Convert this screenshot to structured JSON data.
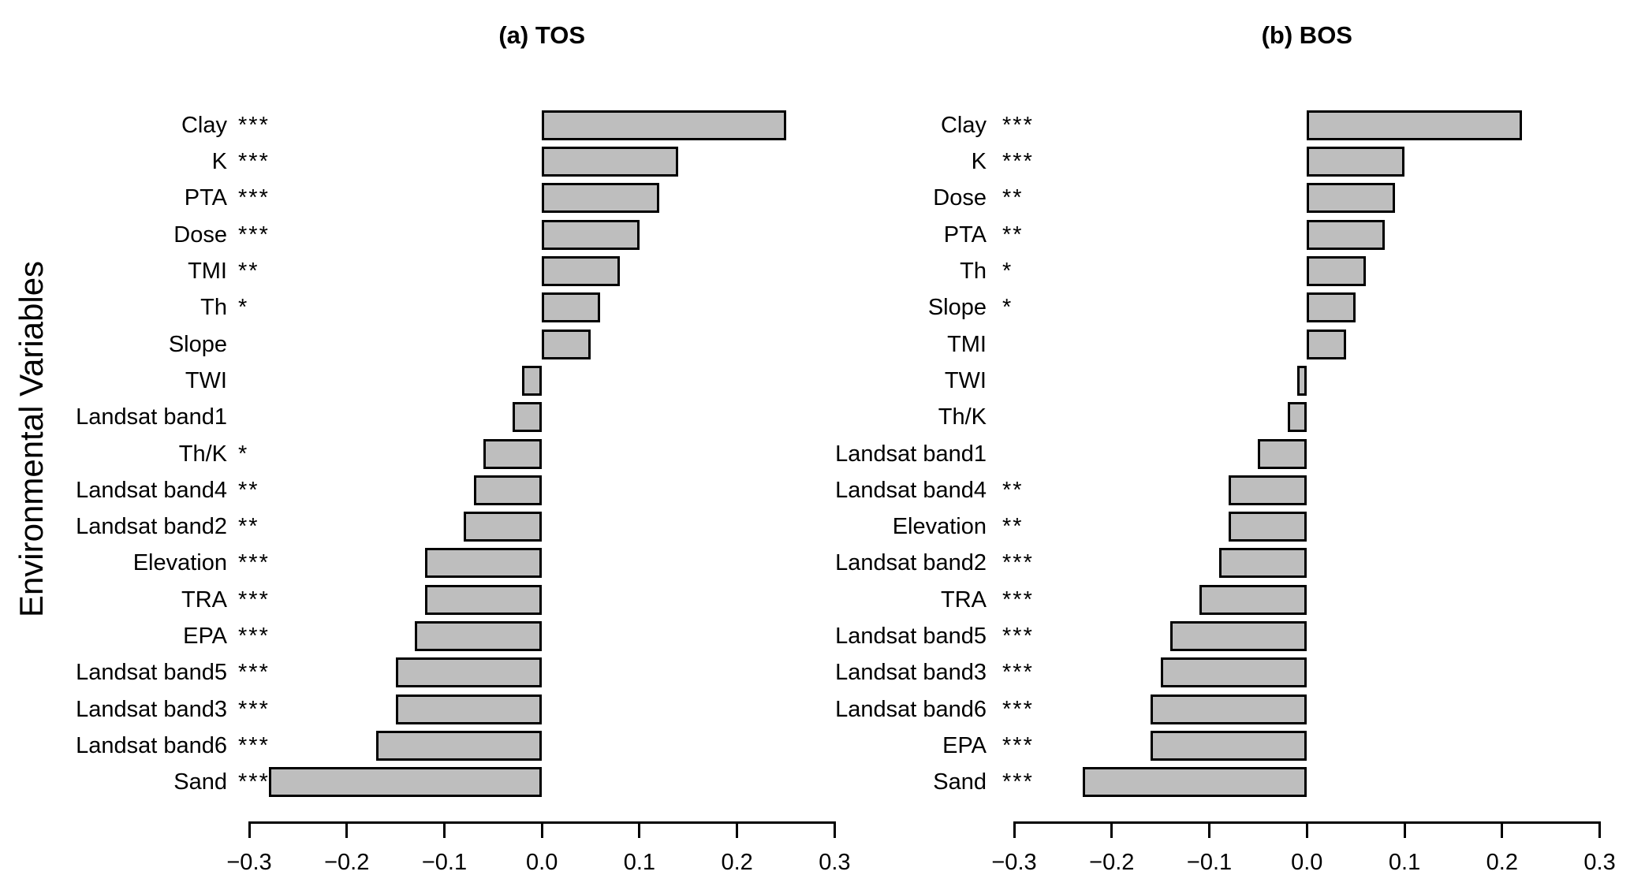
{
  "ylabel": "Environmental Variables",
  "chart_data": [
    {
      "type": "bar",
      "orientation": "horizontal",
      "title": "(a) TOS",
      "xlabel": "",
      "xlim": [
        -0.3,
        0.3
      ],
      "grid": false,
      "bar_fill": "#bebebe",
      "bar_border": "#000000",
      "x_tick_values": [
        -0.3,
        -0.2,
        -0.1,
        0.0,
        0.1,
        0.2,
        0.3
      ],
      "x_tick_labels": [
        "−0.3",
        "−0.2",
        "−0.1",
        "0.0",
        "0.1",
        "0.2",
        "0.3"
      ],
      "rows": [
        {
          "label": "Clay",
          "stars": "***",
          "value": 0.25
        },
        {
          "label": "K",
          "stars": "***",
          "value": 0.14
        },
        {
          "label": "PTA",
          "stars": "***",
          "value": 0.12
        },
        {
          "label": "Dose",
          "stars": "***",
          "value": 0.1
        },
        {
          "label": "TMI",
          "stars": "**",
          "value": 0.08
        },
        {
          "label": "Th",
          "stars": "*",
          "value": 0.06
        },
        {
          "label": "Slope",
          "stars": "",
          "value": 0.05
        },
        {
          "label": "TWI",
          "stars": "",
          "value": -0.02
        },
        {
          "label": "Landsat band1",
          "stars": "",
          "value": -0.03
        },
        {
          "label": "Th/K",
          "stars": "*",
          "value": -0.06
        },
        {
          "label": "Landsat band4",
          "stars": "**",
          "value": -0.07
        },
        {
          "label": "Landsat band2",
          "stars": "**",
          "value": -0.08
        },
        {
          "label": "Elevation",
          "stars": "***",
          "value": -0.12
        },
        {
          "label": "TRA",
          "stars": "***",
          "value": -0.12
        },
        {
          "label": "EPA",
          "stars": "***",
          "value": -0.13
        },
        {
          "label": "Landsat band5",
          "stars": "***",
          "value": -0.15
        },
        {
          "label": "Landsat band3",
          "stars": "***",
          "value": -0.15
        },
        {
          "label": "Landsat band6",
          "stars": "***",
          "value": -0.17
        },
        {
          "label": "Sand",
          "stars": "***",
          "value": -0.28
        }
      ]
    },
    {
      "type": "bar",
      "orientation": "horizontal",
      "title": "(b) BOS",
      "xlabel": "",
      "xlim": [
        -0.3,
        0.3
      ],
      "grid": false,
      "bar_fill": "#bebebe",
      "bar_border": "#000000",
      "x_tick_values": [
        -0.3,
        -0.2,
        -0.1,
        0.0,
        0.1,
        0.2,
        0.3
      ],
      "x_tick_labels": [
        "−0.3",
        "−0.2",
        "−0.1",
        "0.0",
        "0.1",
        "0.2",
        "0.3"
      ],
      "rows": [
        {
          "label": "Clay",
          "stars": "***",
          "value": 0.22
        },
        {
          "label": "K",
          "stars": "***",
          "value": 0.1
        },
        {
          "label": "Dose",
          "stars": "**",
          "value": 0.09
        },
        {
          "label": "PTA",
          "stars": "**",
          "value": 0.08
        },
        {
          "label": "Th",
          "stars": "*",
          "value": 0.06
        },
        {
          "label": "Slope",
          "stars": "*",
          "value": 0.05
        },
        {
          "label": "TMI",
          "stars": "",
          "value": 0.04
        },
        {
          "label": "TWI",
          "stars": "",
          "value": -0.01
        },
        {
          "label": "Th/K",
          "stars": "",
          "value": -0.02
        },
        {
          "label": "Landsat band1",
          "stars": "",
          "value": -0.05
        },
        {
          "label": "Landsat band4",
          "stars": "**",
          "value": -0.08
        },
        {
          "label": "Elevation",
          "stars": "**",
          "value": -0.08
        },
        {
          "label": "Landsat band2",
          "stars": "***",
          "value": -0.09
        },
        {
          "label": "TRA",
          "stars": "***",
          "value": -0.11
        },
        {
          "label": "Landsat band5",
          "stars": "***",
          "value": -0.14
        },
        {
          "label": "Landsat band3",
          "stars": "***",
          "value": -0.15
        },
        {
          "label": "Landsat band6",
          "stars": "***",
          "value": -0.16
        },
        {
          "label": "EPA",
          "stars": "***",
          "value": -0.16
        },
        {
          "label": "Sand",
          "stars": "***",
          "value": -0.23
        }
      ]
    }
  ]
}
